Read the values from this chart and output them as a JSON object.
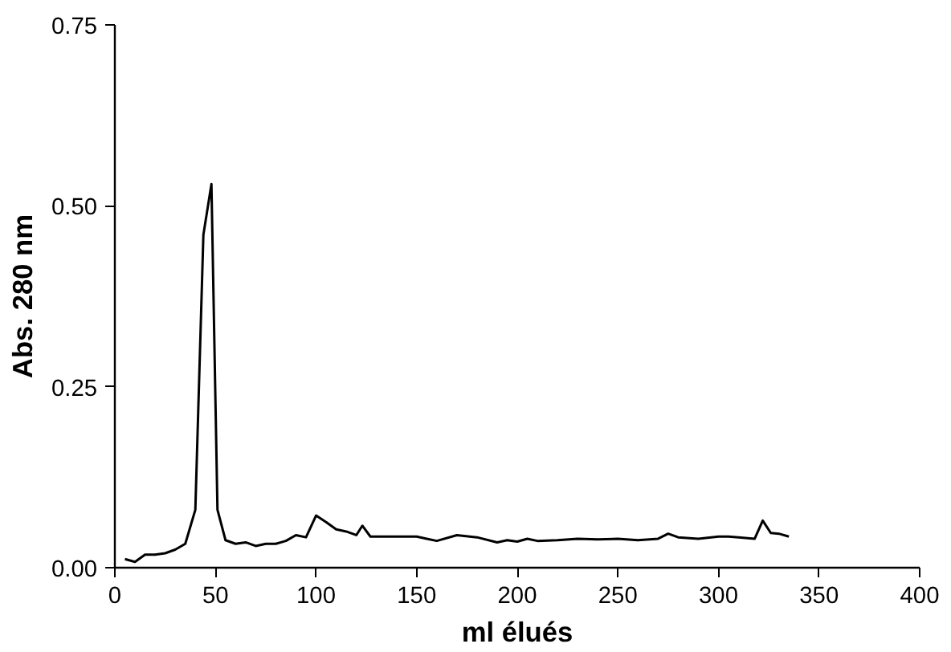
{
  "chart_data": {
    "type": "line",
    "xlabel": "ml élués",
    "ylabel": "Abs. 280 nm",
    "x": [
      5,
      10,
      15,
      20,
      25,
      30,
      35,
      40,
      44,
      48,
      51,
      55,
      60,
      65,
      70,
      75,
      80,
      85,
      90,
      95,
      100,
      105,
      110,
      115,
      120,
      123,
      127,
      135,
      145,
      150,
      155,
      160,
      170,
      180,
      190,
      195,
      200,
      205,
      210,
      220,
      230,
      240,
      250,
      260,
      270,
      275,
      280,
      290,
      300,
      305,
      310,
      318,
      322,
      326,
      330,
      335
    ],
    "series": [
      {
        "color": "#000000",
        "values": [
          0.012,
          0.008,
          0.018,
          0.018,
          0.02,
          0.025,
          0.033,
          0.08,
          0.46,
          0.53,
          0.08,
          0.038,
          0.033,
          0.035,
          0.03,
          0.033,
          0.033,
          0.037,
          0.045,
          0.042,
          0.072,
          0.063,
          0.053,
          0.05,
          0.045,
          0.058,
          0.043,
          0.043,
          0.043,
          0.043,
          0.04,
          0.037,
          0.045,
          0.042,
          0.035,
          0.038,
          0.036,
          0.04,
          0.037,
          0.038,
          0.04,
          0.039,
          0.04,
          0.038,
          0.04,
          0.047,
          0.042,
          0.04,
          0.043,
          0.043,
          0.042,
          0.04,
          0.065,
          0.048,
          0.047,
          0.043
        ]
      }
    ],
    "xlim": [
      0,
      400
    ],
    "ylim": [
      0,
      0.75
    ],
    "xticks": [
      0,
      50,
      100,
      150,
      200,
      250,
      300,
      350,
      400
    ],
    "yticks": [
      {
        "value": 0,
        "label": "0.00"
      },
      {
        "value": 0.25,
        "label": "0.25"
      },
      {
        "value": 0.5,
        "label": "0.50"
      },
      {
        "value": 0.75,
        "label": "0.75"
      }
    ],
    "grid": false,
    "marker": "none",
    "line_style": "solid"
  }
}
